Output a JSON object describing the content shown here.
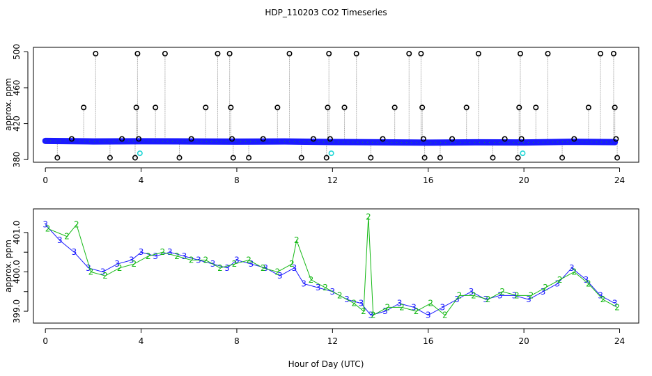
{
  "title": "HDP_110203  CO2 Timeseries",
  "xlabel": "Hour of Day (UTC)",
  "chart_data": [
    {
      "type": "scatter",
      "ylabel": "approx. ppm",
      "xlim": [
        -0.5,
        24.8
      ],
      "ylim": [
        377,
        505
      ],
      "x_ticks": [
        0,
        4,
        8,
        12,
        16,
        20,
        24
      ],
      "y_ticks": [
        380,
        420,
        460,
        500
      ],
      "baseline": {
        "x": [
          0.0,
          2.0,
          4.0,
          6.0,
          8.0,
          10.0,
          12.0,
          14.0,
          16.0,
          18.0,
          20.0,
          22.0,
          23.8
        ],
        "y": [
          400.8,
          400.2,
          400.4,
          400.2,
          400.0,
          400.2,
          399.5,
          399.2,
          398.8,
          399.2,
          399.0,
          399.8,
          399.4
        ]
      },
      "outliers": {
        "x": [
          0.5,
          1.1,
          1.6,
          2.1,
          2.7,
          3.2,
          3.75,
          3.8,
          3.85,
          3.9,
          4.6,
          5.0,
          5.6,
          6.1,
          6.7,
          7.2,
          7.7,
          7.75,
          7.8,
          7.85,
          8.5,
          9.1,
          9.7,
          10.2,
          10.7,
          11.2,
          11.75,
          11.8,
          11.85,
          11.9,
          12.5,
          13.0,
          13.6,
          14.1,
          14.6,
          15.2,
          15.7,
          15.75,
          15.8,
          15.85,
          16.5,
          17.0,
          17.6,
          18.1,
          18.7,
          19.2,
          19.75,
          19.8,
          19.85,
          19.9,
          20.5,
          21.0,
          21.6,
          22.1,
          22.7,
          23.2,
          23.75,
          23.8,
          23.85,
          23.9
        ],
        "y": [
          382,
          403,
          438,
          498,
          382,
          403,
          382,
          438,
          498,
          403,
          438,
          498,
          382,
          403,
          438,
          498,
          498,
          438,
          403,
          382,
          382,
          403,
          438,
          498,
          382,
          403,
          382,
          438,
          498,
          403,
          438,
          498,
          382,
          403,
          438,
          498,
          498,
          438,
          403,
          382,
          382,
          403,
          438,
          498,
          382,
          403,
          382,
          438,
          498,
          403,
          438,
          498,
          382,
          403,
          438,
          498,
          498,
          438,
          403,
          382
        ]
      },
      "cyan_points": {
        "x": [
          3.95,
          11.95,
          19.95
        ],
        "y": [
          387,
          387,
          387
        ]
      },
      "colors": {
        "baseline": "#1a1aff",
        "outlier": "#000000",
        "cyan": "#22d6d6",
        "green": "#14b814"
      }
    },
    {
      "type": "line",
      "ylabel": "approx. ppm",
      "xlim": [
        -0.5,
        24.8
      ],
      "ylim": [
        398.7,
        401.6
      ],
      "x_ticks": [
        0,
        4,
        8,
        12,
        16,
        20,
        24
      ],
      "y_ticks": [
        399.0,
        399.5,
        400.0,
        400.5,
        401.0
      ],
      "y_tick_labels": [
        "399.0",
        "",
        "400.0",
        "",
        "401.0"
      ],
      "series": [
        {
          "label_glyph": "3",
          "color": "#1a1aff",
          "x": [
            0.0,
            0.6,
            1.2,
            1.8,
            2.4,
            3.0,
            3.6,
            4.0,
            4.6,
            5.2,
            5.8,
            6.4,
            7.0,
            7.6,
            8.0,
            8.6,
            9.2,
            9.8,
            10.4,
            10.8,
            11.4,
            12.0,
            12.6,
            13.2,
            13.6,
            14.2,
            14.8,
            15.4,
            16.0,
            16.6,
            17.2,
            17.8,
            18.4,
            19.0,
            19.6,
            20.2,
            20.8,
            21.4,
            22.0,
            22.6,
            23.2,
            23.8
          ],
          "y": [
            401.2,
            400.8,
            400.5,
            400.1,
            400.0,
            400.2,
            400.3,
            400.5,
            400.4,
            400.5,
            400.4,
            400.3,
            400.2,
            400.1,
            400.3,
            400.2,
            400.1,
            399.9,
            400.1,
            399.7,
            399.6,
            399.5,
            399.3,
            399.2,
            398.9,
            399.0,
            399.2,
            399.1,
            398.9,
            399.1,
            399.3,
            399.5,
            399.3,
            399.4,
            399.4,
            399.3,
            399.5,
            399.7,
            400.1,
            399.8,
            399.4,
            399.2
          ]
        },
        {
          "label_glyph": "2",
          "color": "#14b814",
          "x": [
            0.1,
            0.9,
            1.3,
            1.9,
            2.5,
            3.1,
            3.7,
            4.3,
            4.9,
            5.5,
            6.1,
            6.7,
            7.3,
            7.9,
            8.5,
            9.1,
            9.7,
            10.3,
            10.5,
            11.1,
            11.7,
            12.3,
            12.9,
            13.3,
            13.5,
            13.7,
            14.3,
            14.9,
            15.5,
            16.1,
            16.7,
            17.3,
            17.9,
            18.5,
            19.1,
            19.7,
            20.3,
            20.9,
            21.5,
            22.1,
            22.7,
            23.3,
            23.9
          ],
          "y": [
            401.1,
            400.9,
            401.2,
            400.0,
            399.9,
            400.1,
            400.2,
            400.4,
            400.5,
            400.4,
            400.3,
            400.3,
            400.1,
            400.2,
            400.3,
            400.1,
            400.0,
            400.2,
            400.8,
            399.8,
            399.6,
            399.4,
            399.2,
            399.0,
            401.4,
            398.9,
            399.1,
            399.1,
            399.0,
            399.2,
            398.9,
            399.4,
            399.4,
            399.3,
            399.5,
            399.4,
            399.4,
            399.6,
            399.8,
            400.0,
            399.7,
            399.3,
            399.1
          ]
        }
      ]
    }
  ]
}
